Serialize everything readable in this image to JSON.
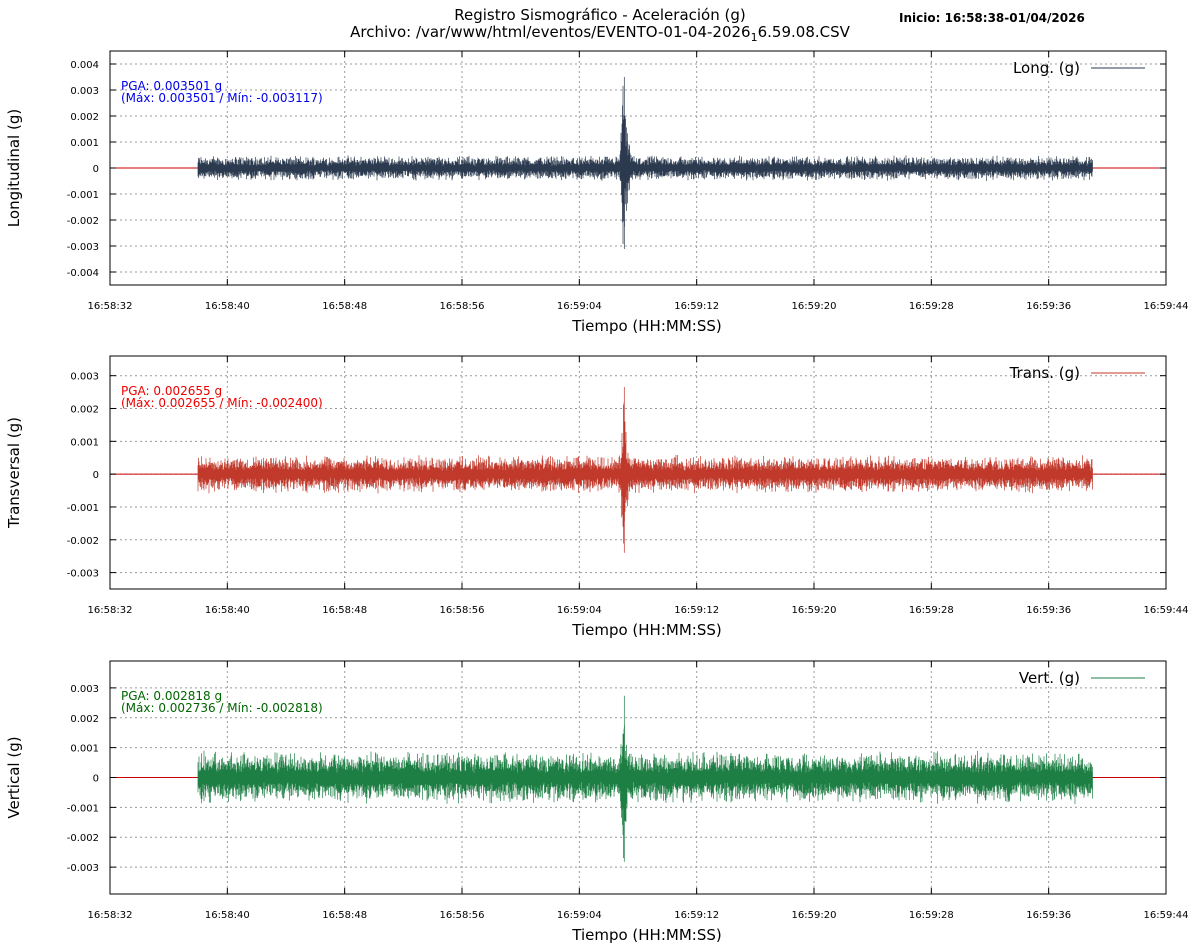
{
  "header": {
    "title_line1": "Registro Sismográfico - Aceleración (g)",
    "title_prefix": "Archivo: /var/www/html/eventos/EVENTO-01-04-2026",
    "title_sub": "1",
    "title_suffix": "6.59.08.CSV",
    "start_label": "Inicio: 16:58:38-01/04/2026"
  },
  "chart_data": [
    {
      "type": "line",
      "channel": "longitudinal",
      "ylabel": "Longitudinal (g)",
      "xlabel": "Tiempo (HH:MM:SS)",
      "legend": "Long. (g)",
      "legend_position": "top-right",
      "color": "#2b3a4f",
      "zero_line_color": "#cc0000",
      "ylim": [
        -0.0045,
        0.0045
      ],
      "yticks": [
        "0.004",
        "0.003",
        "0.002",
        "0.001",
        "0",
        "-0.001",
        "-0.002",
        "-0.003",
        "-0.004"
      ],
      "ytick_values": [
        0.004,
        0.003,
        0.002,
        0.001,
        0,
        -0.001,
        -0.002,
        -0.003,
        -0.004
      ],
      "xticks": [
        "16:58:32",
        "16:58:40",
        "16:58:48",
        "16:58:56",
        "16:59:04",
        "16:59:12",
        "16:59:20",
        "16:59:28",
        "16:59:36",
        "16:59:44"
      ],
      "grid": true,
      "pga": "PGA: 0.003501 g",
      "maxmin": "(Máx: 0.003501 / Mín: -0.003117)",
      "annotation_color": "#0000ee",
      "record_start": "16:58:38",
      "record_end": "16:59:39",
      "event_time": "16:59:07",
      "max": 0.003501,
      "min": -0.003117,
      "noise_level": 0.0005
    },
    {
      "type": "line",
      "channel": "transversal",
      "ylabel": "Transversal (g)",
      "xlabel": "Tiempo (HH:MM:SS)",
      "legend": "Trans. (g)",
      "legend_position": "top-right",
      "color": "#c0392b",
      "zero_line_color": "#cc0000",
      "ylim": [
        -0.0035,
        0.0036
      ],
      "yticks": [
        "0.003",
        "0.002",
        "0.001",
        "0",
        "-0.001",
        "-0.002",
        "-0.003"
      ],
      "ytick_values": [
        0.003,
        0.002,
        0.001,
        0,
        -0.001,
        -0.002,
        -0.003
      ],
      "xticks": [
        "16:58:32",
        "16:58:40",
        "16:58:48",
        "16:58:56",
        "16:59:04",
        "16:59:12",
        "16:59:20",
        "16:59:28",
        "16:59:36",
        "16:59:44"
      ],
      "grid": true,
      "pga": "PGA: 0.002655 g",
      "maxmin": "(Máx: 0.002655 / Mín: -0.002400)",
      "annotation_color": "#ee0000",
      "record_start": "16:58:38",
      "record_end": "16:59:39",
      "event_time": "16:59:07",
      "max": 0.002655,
      "min": -0.0024,
      "noise_level": 0.0006
    },
    {
      "type": "line",
      "channel": "vertical",
      "ylabel": "Vertical (g)",
      "xlabel": "Tiempo (HH:MM:SS)",
      "legend": "Vert. (g)",
      "legend_position": "top-right",
      "color": "#1e7f45",
      "zero_line_color": "#cc0000",
      "ylim": [
        -0.0039,
        0.0039
      ],
      "yticks": [
        "0.003",
        "0.002",
        "0.001",
        "0",
        "-0.001",
        "-0.002",
        "-0.003"
      ],
      "ytick_values": [
        0.003,
        0.002,
        0.001,
        0,
        -0.001,
        -0.002,
        -0.003
      ],
      "xticks": [
        "16:58:32",
        "16:58:40",
        "16:58:48",
        "16:58:56",
        "16:59:04",
        "16:59:12",
        "16:59:20",
        "16:59:28",
        "16:59:36",
        "16:59:44"
      ],
      "grid": true,
      "pga": "PGA: 0.002818 g",
      "maxmin": "(Máx: 0.002736 / Mín: -0.002818)",
      "annotation_color": "#006400",
      "record_start": "16:58:38",
      "record_end": "16:59:39",
      "event_time": "16:59:07",
      "max": 0.002736,
      "min": -0.002818,
      "noise_level": 0.0009
    }
  ]
}
